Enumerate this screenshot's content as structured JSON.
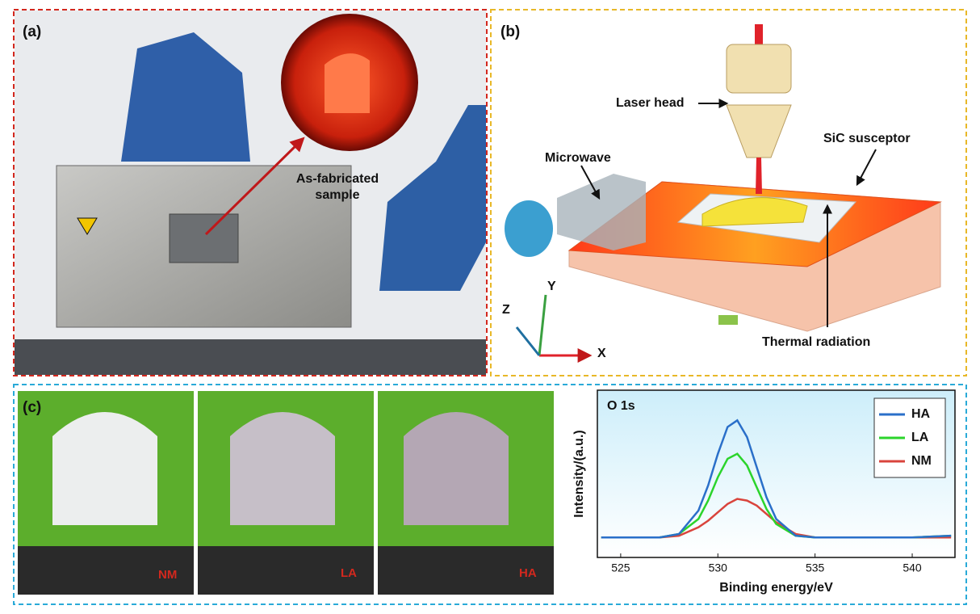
{
  "panels": {
    "a": {
      "label": "(a)",
      "annotation": [
        "As-fabricated",
        "sample"
      ]
    },
    "b": {
      "label": "(b)",
      "laser": "Laser head",
      "microwave": "Microwave",
      "susceptor": "SiC susceptor",
      "radiation": "Thermal radiation",
      "axes": [
        "X",
        "Y",
        "Z"
      ]
    },
    "c": {
      "label": "(c)",
      "samples": [
        "NM",
        "LA",
        "HA"
      ]
    }
  },
  "chart_data": {
    "type": "line",
    "title": "O 1s",
    "xlabel": "Binding energy/eV",
    "ylabel": "Intensity/(a.u.)",
    "x": [
      524,
      526,
      527,
      528,
      529,
      529.5,
      530,
      530.5,
      531,
      531.5,
      532,
      532.5,
      533,
      534,
      535,
      536,
      538,
      540,
      542
    ],
    "series": [
      {
        "name": "HA",
        "color": "#2a6fc9",
        "values": [
          0.12,
          0.12,
          0.12,
          0.14,
          0.28,
          0.43,
          0.62,
          0.78,
          0.82,
          0.72,
          0.54,
          0.36,
          0.23,
          0.13,
          0.12,
          0.12,
          0.12,
          0.12,
          0.13
        ]
      },
      {
        "name": "LA",
        "color": "#2bd42b",
        "values": [
          0.12,
          0.12,
          0.12,
          0.14,
          0.23,
          0.34,
          0.48,
          0.59,
          0.62,
          0.55,
          0.42,
          0.29,
          0.2,
          0.13,
          0.12,
          0.12,
          0.12,
          0.12,
          0.13
        ]
      },
      {
        "name": "NM",
        "color": "#d9443c",
        "values": [
          0.12,
          0.12,
          0.12,
          0.13,
          0.18,
          0.22,
          0.27,
          0.32,
          0.35,
          0.34,
          0.31,
          0.26,
          0.21,
          0.14,
          0.12,
          0.12,
          0.12,
          0.12,
          0.12
        ]
      }
    ],
    "xlim": [
      523.8,
      542.2
    ],
    "xticks": [
      525,
      530,
      535,
      540
    ],
    "ylim": [
      0,
      1
    ],
    "legend": "upper right"
  }
}
